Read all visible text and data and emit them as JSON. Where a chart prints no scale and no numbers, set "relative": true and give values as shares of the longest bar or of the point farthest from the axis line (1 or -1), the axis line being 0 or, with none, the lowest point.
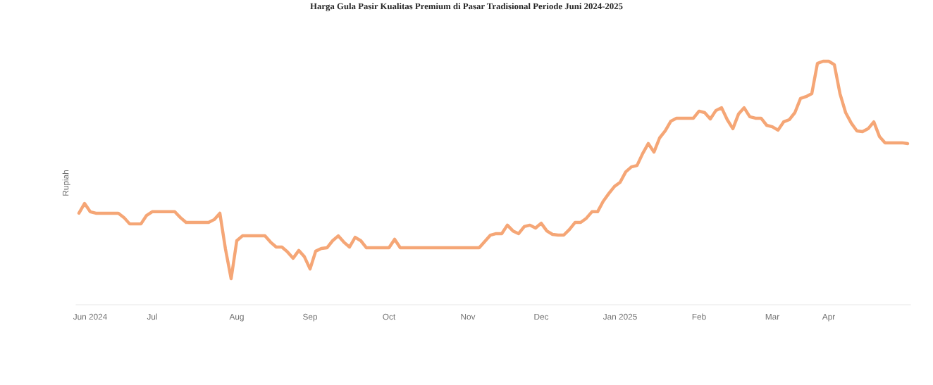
{
  "chart_data": {
    "type": "line",
    "title": "Harga Gula Pasir Kualitas Premium di Pasar Tradisional Periode Juni 2024-2025",
    "ylabel": "Rupiah",
    "relative": true,
    "categories": [
      null,
      null,
      "Jun 2024",
      null,
      null,
      null,
      null,
      null,
      null,
      null,
      null,
      null,
      null,
      "Jul",
      null,
      null,
      null,
      null,
      null,
      null,
      null,
      null,
      null,
      null,
      null,
      null,
      null,
      null,
      "Aug",
      null,
      null,
      null,
      null,
      null,
      null,
      null,
      null,
      null,
      null,
      null,
      null,
      "Sep",
      null,
      null,
      null,
      null,
      null,
      null,
      null,
      null,
      null,
      null,
      null,
      null,
      null,
      "Oct",
      null,
      null,
      null,
      null,
      null,
      null,
      null,
      null,
      null,
      null,
      null,
      null,
      null,
      "Nov",
      null,
      null,
      null,
      null,
      null,
      null,
      null,
      null,
      null,
      null,
      null,
      null,
      "Dec",
      null,
      null,
      null,
      null,
      null,
      null,
      null,
      null,
      null,
      null,
      null,
      null,
      null,
      "Jan 2025",
      null,
      null,
      null,
      null,
      null,
      null,
      null,
      null,
      null,
      null,
      null,
      null,
      null,
      "Feb",
      null,
      null,
      null,
      null,
      null,
      null,
      null,
      null,
      null,
      null,
      null,
      null,
      "Mar",
      null,
      null,
      null,
      null,
      null,
      null,
      null,
      null,
      null,
      "Apr",
      null,
      null,
      null,
      null,
      null,
      null,
      null,
      null,
      null,
      null,
      null,
      null,
      null,
      null
    ],
    "series": [
      {
        "color": "#f5a676",
        "values": [
          0.376,
          0.416,
          0.382,
          0.376,
          0.376,
          0.376,
          0.376,
          0.376,
          0.358,
          0.332,
          0.332,
          0.332,
          0.367,
          0.382,
          0.382,
          0.382,
          0.382,
          0.382,
          0.358,
          0.338,
          0.338,
          0.338,
          0.338,
          0.338,
          0.35,
          0.376,
          0.228,
          0.107,
          0.263,
          0.283,
          0.283,
          0.283,
          0.283,
          0.283,
          0.257,
          0.237,
          0.237,
          0.217,
          0.191,
          0.223,
          0.197,
          0.147,
          0.22,
          0.231,
          0.234,
          0.263,
          0.283,
          0.257,
          0.237,
          0.277,
          0.263,
          0.234,
          0.234,
          0.234,
          0.234,
          0.234,
          0.269,
          0.234,
          0.234,
          0.234,
          0.234,
          0.234,
          0.234,
          0.234,
          0.234,
          0.234,
          0.234,
          0.234,
          0.234,
          0.234,
          0.234,
          0.234,
          0.26,
          0.286,
          0.292,
          0.292,
          0.327,
          0.303,
          0.292,
          0.321,
          0.327,
          0.315,
          0.335,
          0.303,
          0.289,
          0.286,
          0.286,
          0.309,
          0.338,
          0.338,
          0.355,
          0.382,
          0.382,
          0.425,
          0.457,
          0.486,
          0.503,
          0.546,
          0.566,
          0.572,
          0.621,
          0.662,
          0.627,
          0.685,
          0.714,
          0.754,
          0.766,
          0.766,
          0.766,
          0.766,
          0.795,
          0.789,
          0.763,
          0.798,
          0.809,
          0.76,
          0.723,
          0.783,
          0.809,
          0.772,
          0.766,
          0.766,
          0.737,
          0.731,
          0.717,
          0.751,
          0.76,
          0.789,
          0.847,
          0.855,
          0.867,
          0.991,
          1,
          1,
          0.986,
          0.867,
          0.789,
          0.746,
          0.714,
          0.711,
          0.723,
          0.751,
          0.691,
          0.665,
          0.665,
          0.665,
          0.665,
          0.662
        ]
      }
    ]
  }
}
